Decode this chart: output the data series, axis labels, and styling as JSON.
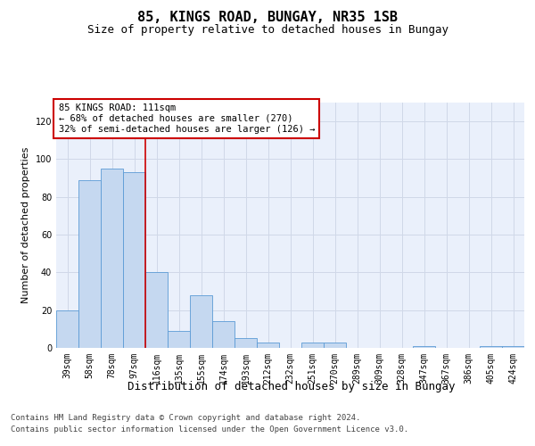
{
  "title": "85, KINGS ROAD, BUNGAY, NR35 1SB",
  "subtitle": "Size of property relative to detached houses in Bungay",
  "xlabel": "Distribution of detached houses by size in Bungay",
  "ylabel": "Number of detached properties",
  "categories": [
    "39sqm",
    "58sqm",
    "78sqm",
    "97sqm",
    "116sqm",
    "135sqm",
    "155sqm",
    "174sqm",
    "193sqm",
    "212sqm",
    "232sqm",
    "251sqm",
    "270sqm",
    "289sqm",
    "309sqm",
    "328sqm",
    "347sqm",
    "367sqm",
    "386sqm",
    "405sqm",
    "424sqm"
  ],
  "values": [
    20,
    89,
    95,
    93,
    40,
    9,
    28,
    14,
    5,
    3,
    0,
    3,
    3,
    0,
    0,
    0,
    1,
    0,
    0,
    1,
    1
  ],
  "bar_color": "#c5d8f0",
  "bar_edge_color": "#5b9bd5",
  "vline_color": "#cc0000",
  "annotation_text": "85 KINGS ROAD: 111sqm\n← 68% of detached houses are smaller (270)\n32% of semi-detached houses are larger (126) →",
  "annotation_box_color": "#ffffff",
  "annotation_box_edge_color": "#cc0000",
  "ylim": [
    0,
    130
  ],
  "yticks": [
    0,
    20,
    40,
    60,
    80,
    100,
    120
  ],
  "grid_color": "#d0d8e8",
  "background_color": "#eaf0fb",
  "footer_line1": "Contains HM Land Registry data © Crown copyright and database right 2024.",
  "footer_line2": "Contains public sector information licensed under the Open Government Licence v3.0.",
  "title_fontsize": 11,
  "subtitle_fontsize": 9,
  "xlabel_fontsize": 9,
  "ylabel_fontsize": 8,
  "tick_fontsize": 7,
  "annotation_fontsize": 7.5,
  "footer_fontsize": 6.5
}
